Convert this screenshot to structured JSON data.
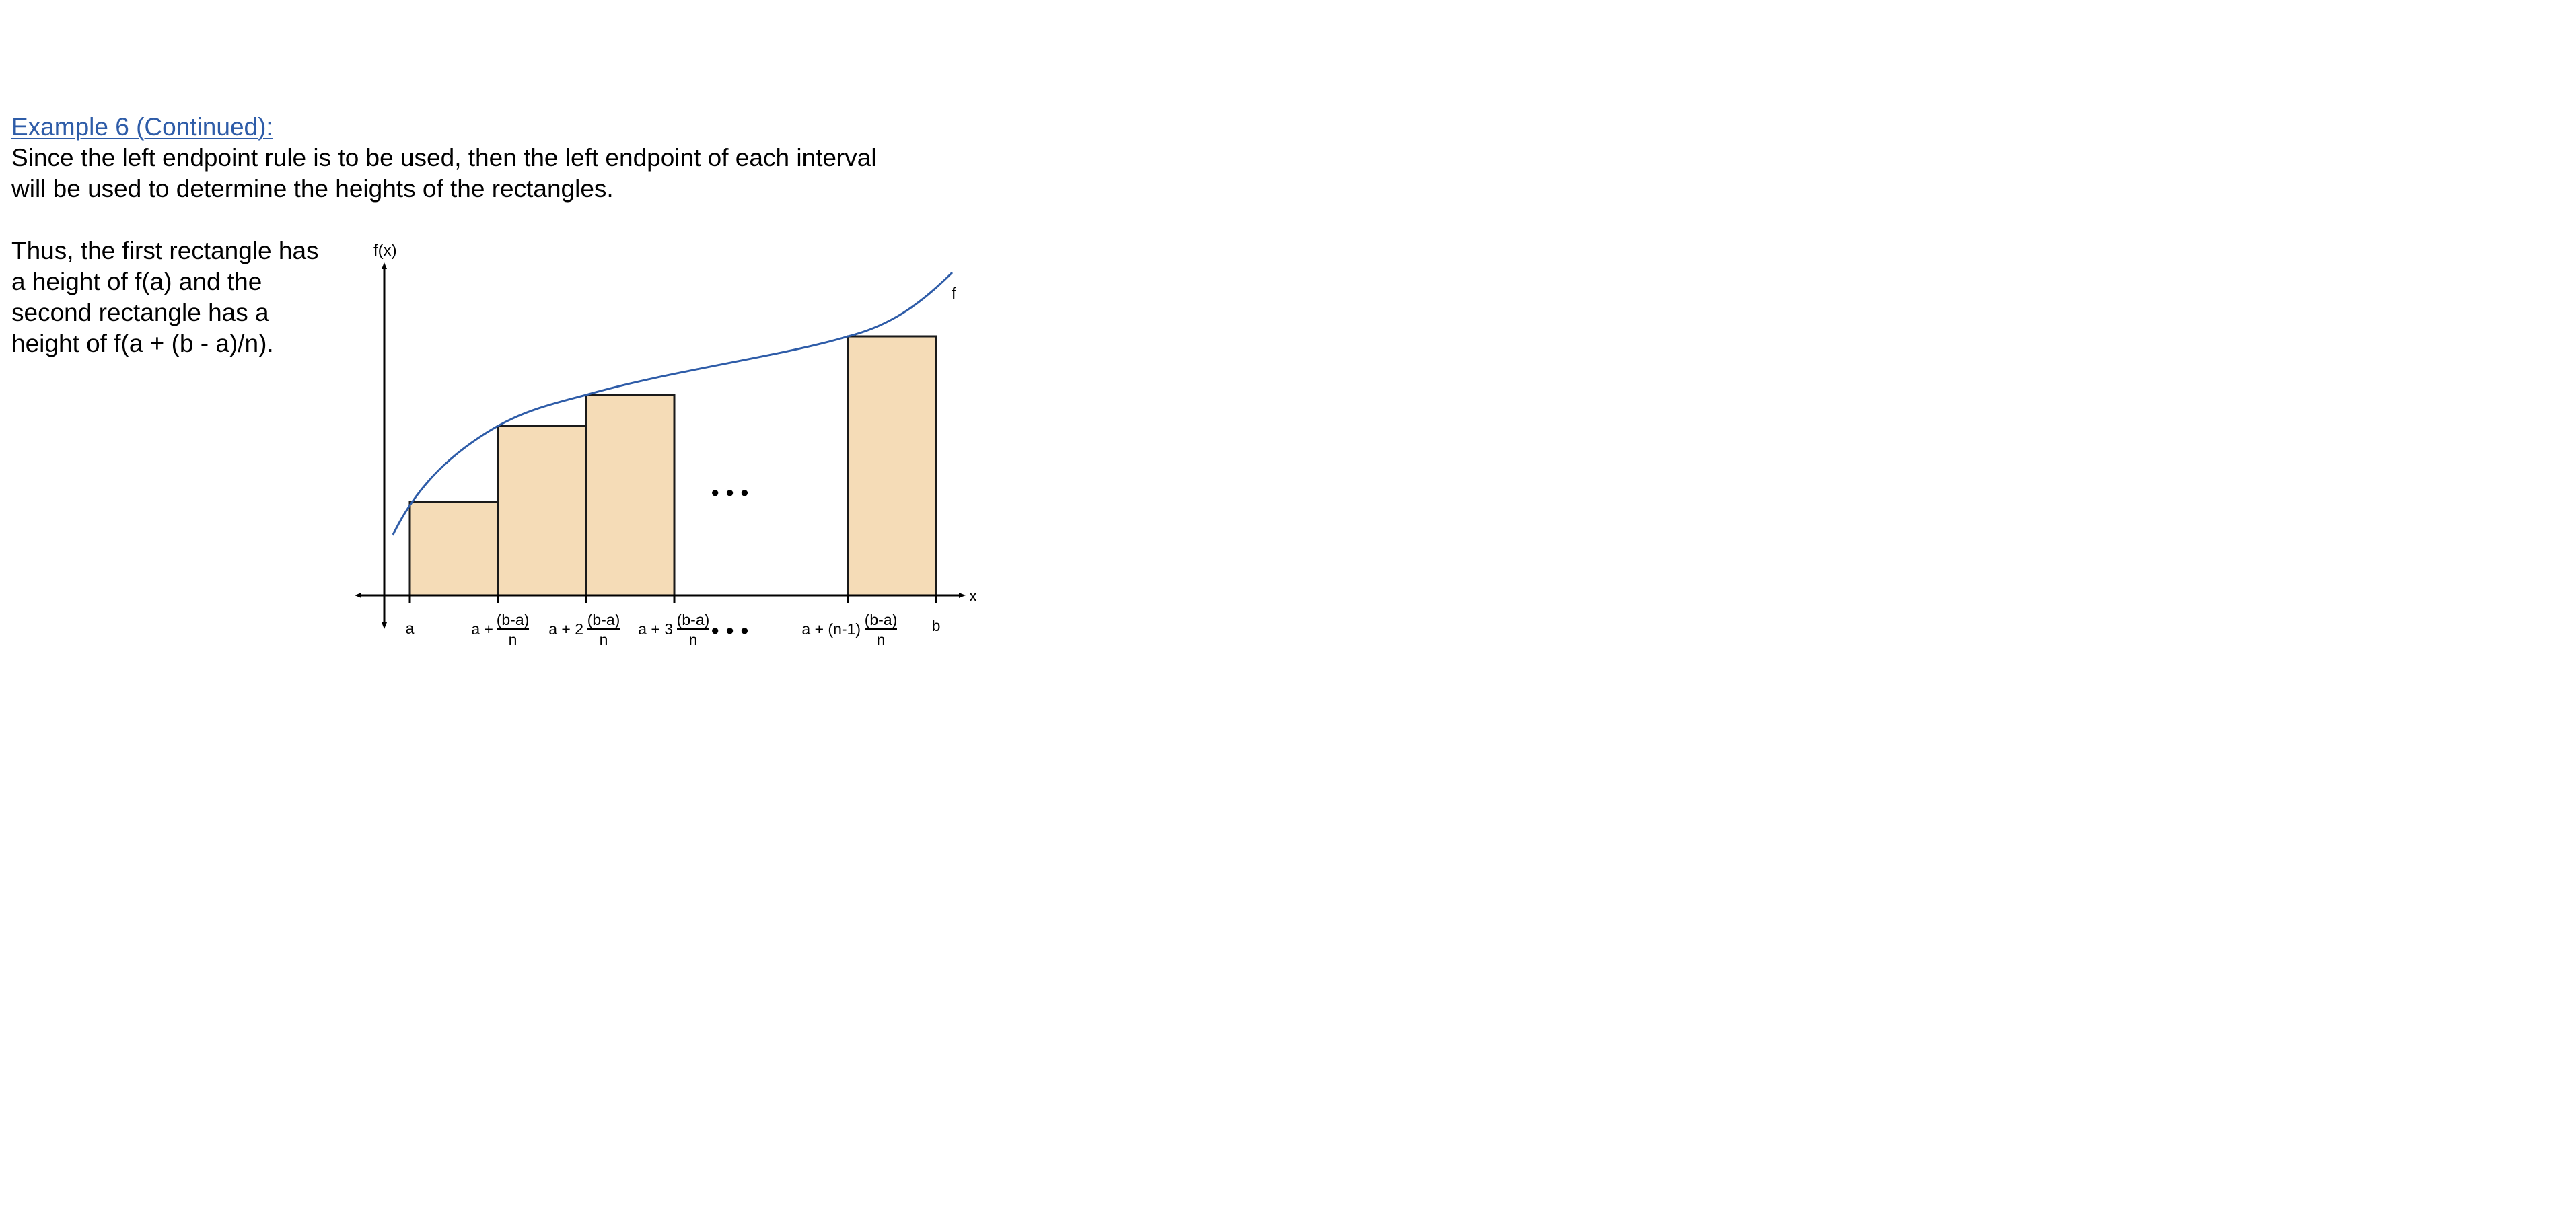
{
  "heading": "Example 6 (Continued):",
  "paragraph1": {
    "lines": [
      "Since the left endpoint rule is to be used, then the left endpoint of each interval",
      "will be used to determine the heights of the rectangles."
    ]
  },
  "paragraph2": {
    "lines": [
      "Thus, the first rectangle has",
      "a height of f(a) and the",
      "second rectangle has a",
      "height of f(a + (b - a)/n)."
    ]
  },
  "diagram": {
    "y_axis_label": "f(x)",
    "x_axis_label": "x",
    "curve_label": "f",
    "ellipsis": "•••",
    "colors": {
      "curve": "#2e5ca8",
      "rect_fill": "#f5dcb7",
      "rect_stroke": "#1a1a1a",
      "axis": "#000000"
    },
    "ticks": {
      "a": "a",
      "t1_prefix": "a +",
      "t2_prefix": "a + 2",
      "t3_prefix": "a + 3",
      "t4_prefix": "a + (n-1)",
      "fraction_num": "(b-a)",
      "fraction_den": "n",
      "b": "b"
    }
  }
}
